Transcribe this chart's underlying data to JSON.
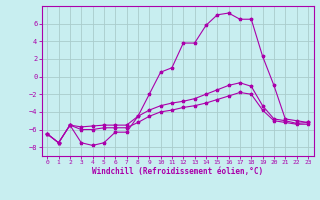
{
  "xlabel": "Windchill (Refroidissement éolien,°C)",
  "ylabel": "",
  "background_color": "#c8eef0",
  "line_color": "#aa00aa",
  "grid_color": "#aacccc",
  "xlim": [
    -0.5,
    23.5
  ],
  "ylim": [
    -9,
    8
  ],
  "xticks": [
    0,
    1,
    2,
    3,
    4,
    5,
    6,
    7,
    8,
    9,
    10,
    11,
    12,
    13,
    14,
    15,
    16,
    17,
    18,
    19,
    20,
    21,
    22,
    23
  ],
  "yticks": [
    -8,
    -6,
    -4,
    -2,
    0,
    2,
    4,
    6
  ],
  "series": [
    {
      "x": [
        0,
        1,
        2,
        3,
        4,
        5,
        6,
        7,
        8,
        9,
        10,
        11,
        12,
        13,
        14,
        15,
        16,
        17,
        18,
        19,
        20,
        21,
        22,
        23
      ],
      "y": [
        -6.5,
        -7.5,
        -5.5,
        -7.5,
        -7.8,
        -7.5,
        -6.3,
        -6.3,
        -4.5,
        -2.0,
        0.5,
        1.0,
        3.8,
        3.8,
        5.8,
        7.0,
        7.2,
        6.5,
        6.5,
        2.3,
        -1.0,
        -4.8,
        -5.0,
        -5.2
      ]
    },
    {
      "x": [
        0,
        1,
        2,
        3,
        4,
        5,
        6,
        7,
        8,
        9,
        10,
        11,
        12,
        13,
        14,
        15,
        16,
        17,
        18,
        19,
        20,
        21,
        22,
        23
      ],
      "y": [
        -6.5,
        -7.5,
        -5.5,
        -5.7,
        -5.6,
        -5.5,
        -5.5,
        -5.5,
        -4.5,
        -3.8,
        -3.3,
        -3.0,
        -2.8,
        -2.5,
        -2.0,
        -1.5,
        -1.0,
        -0.7,
        -1.1,
        -3.3,
        -4.8,
        -5.0,
        -5.3,
        -5.2
      ]
    },
    {
      "x": [
        0,
        1,
        2,
        3,
        4,
        5,
        6,
        7,
        8,
        9,
        10,
        11,
        12,
        13,
        14,
        15,
        16,
        17,
        18,
        19,
        20,
        21,
        22,
        23
      ],
      "y": [
        -6.5,
        -7.5,
        -5.5,
        -6.0,
        -6.0,
        -5.8,
        -5.8,
        -5.8,
        -5.2,
        -4.5,
        -4.0,
        -3.8,
        -3.5,
        -3.3,
        -3.0,
        -2.6,
        -2.2,
        -1.8,
        -2.0,
        -3.8,
        -5.0,
        -5.2,
        -5.4,
        -5.4
      ]
    }
  ]
}
